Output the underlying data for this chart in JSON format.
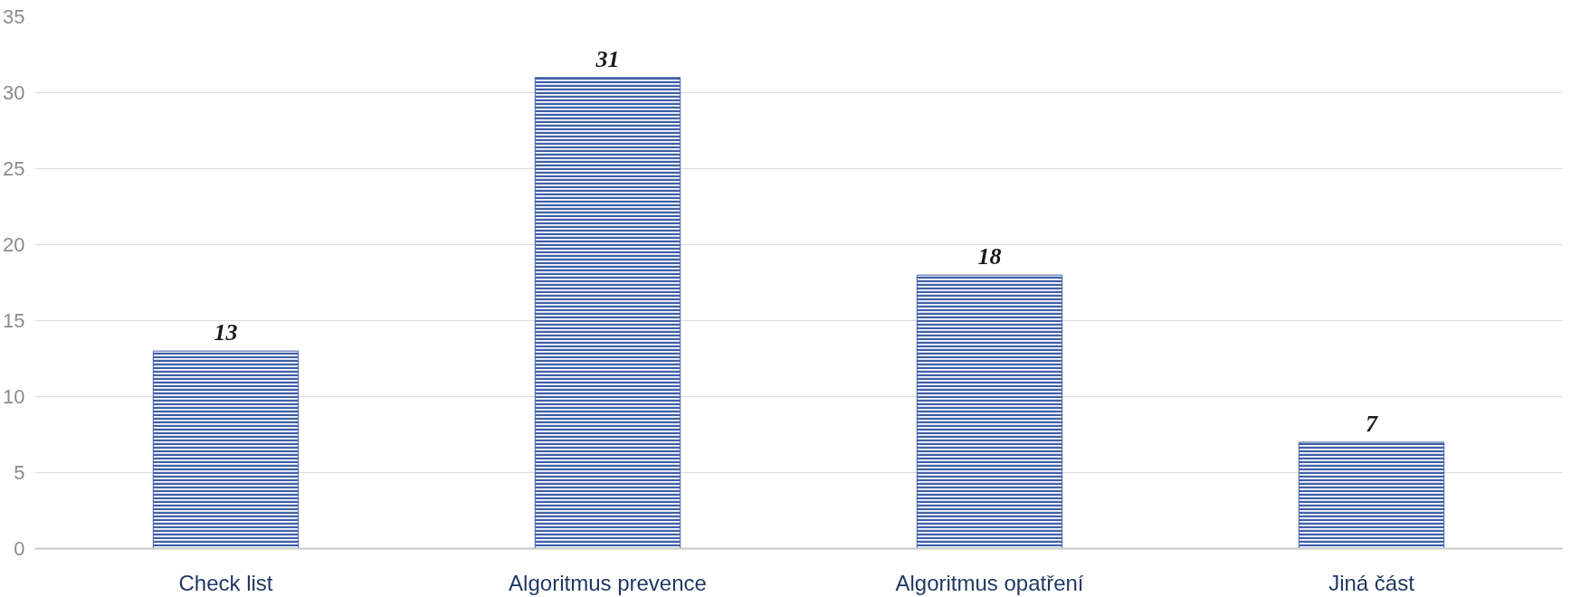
{
  "chart_data": {
    "type": "bar",
    "categories": [
      "Check list",
      "Algoritmus prevence",
      "Algoritmus opatření",
      "Jiná část"
    ],
    "values": [
      13,
      31,
      18,
      7
    ],
    "color": "#3f5fa8",
    "ylim": [
      0,
      35
    ],
    "yticks": [
      0,
      5,
      10,
      15,
      20,
      25,
      30,
      35
    ],
    "grid": "y",
    "data_labels": true
  }
}
